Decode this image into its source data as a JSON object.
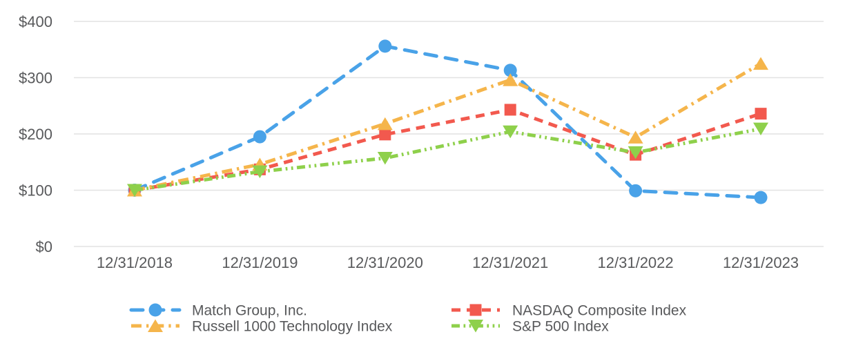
{
  "chart_data": {
    "type": "line",
    "title": "",
    "x_categories": [
      "12/31/2018",
      "12/31/2019",
      "12/31/2020",
      "12/31/2021",
      "12/31/2022",
      "12/31/2023"
    ],
    "y_ticks": [
      {
        "label": "$0",
        "value": 0
      },
      {
        "label": "$100",
        "value": 100
      },
      {
        "label": "$200",
        "value": 200
      },
      {
        "label": "$300",
        "value": 300
      },
      {
        "label": "$400",
        "value": 400
      }
    ],
    "ylim": [
      0,
      400
    ],
    "grid": "horizontal-only",
    "legend_position": "bottom",
    "series": [
      {
        "name": "Match Group, Inc.",
        "color": "#49a2e8",
        "marker": "circle",
        "line_style": "long-dash",
        "values": [
          100,
          195,
          356,
          313,
          99,
          87
        ]
      },
      {
        "name": "NASDAQ Composite Index",
        "color": "#f2594e",
        "marker": "square",
        "line_style": "dash",
        "values": [
          100,
          137,
          199,
          243,
          163,
          236
        ]
      },
      {
        "name": "Russell 1000 Technology Index",
        "color": "#f5b54b",
        "marker": "triangle-up",
        "line_style": "dash-dot",
        "values": [
          100,
          146,
          218,
          296,
          194,
          325
        ]
      },
      {
        "name": "S&P 500 Index",
        "color": "#8ed04b",
        "marker": "triangle-down",
        "line_style": "dash-dot-dot",
        "values": [
          100,
          133,
          157,
          204,
          167,
          209
        ]
      }
    ],
    "legend_rows": [
      [
        "Match Group, Inc.",
        "NASDAQ Composite Index"
      ],
      [
        "Russell 1000 Technology Index",
        "S&P 500 Index"
      ]
    ]
  },
  "style": {
    "background": "#ffffff",
    "text_color": "#58595b",
    "grid_color": "#e2e2e2"
  }
}
